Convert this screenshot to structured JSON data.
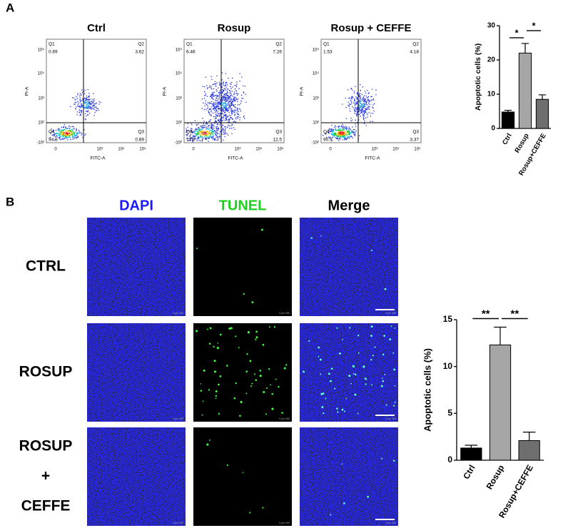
{
  "panel_labels": [
    "A",
    "B"
  ],
  "flow_axes": {
    "x_label": "FITC-A",
    "y_label": "PI-A",
    "xticks": [
      "0",
      "10³",
      "10⁴",
      "10⁵"
    ],
    "yticks": [
      "10⁵",
      "10⁴",
      "10³",
      "10²",
      "-10²"
    ]
  },
  "flow_plots": [
    {
      "title": "Ctrl",
      "quadrants": [
        {
          "name": "Q1",
          "value": 0.69
        },
        {
          "name": "Q2",
          "value": 3.62
        },
        {
          "name": "Q4",
          "value": 94.8
        },
        {
          "name": "Q3",
          "value": 0.89
        }
      ]
    },
    {
      "title": "Rosup",
      "quadrants": [
        {
          "name": "Q1",
          "value": 6.46
        },
        {
          "name": "Q2",
          "value": 7.26
        },
        {
          "name": "Q4",
          "value": 73.8
        },
        {
          "name": "Q3",
          "value": 12.5
        }
      ]
    },
    {
      "title": "Rosup + CEFFE",
      "quadrants": [
        {
          "name": "Q1",
          "value": 1.53
        },
        {
          "name": "Q2",
          "value": 4.18
        },
        {
          "name": "Q4",
          "value": 90.9
        },
        {
          "name": "Q3",
          "value": 3.37
        }
      ]
    }
  ],
  "microscopy": {
    "columns": [
      "DAPI",
      "TUNEL",
      "Merge"
    ],
    "rows": [
      [
        "CTRL"
      ],
      [
        "ROSUP"
      ],
      [
        "ROSUP",
        "+",
        "CEFFE"
      ]
    ],
    "scale_label": "0   µm   250"
  },
  "chart_data": [
    {
      "type": "bar",
      "ylabel": "Apoptotic cells (%)",
      "categories": [
        "Ctrl",
        "Rosup",
        "Rosup+CEFFE"
      ],
      "values": [
        4.8,
        22,
        8.5
      ],
      "errors": [
        0.5,
        2.8,
        1.3
      ],
      "colors": [
        "#000000",
        "#a6a6a6",
        "#6e6e6e"
      ],
      "ylim": [
        0,
        30
      ],
      "yticks": [
        0,
        10,
        20,
        30
      ],
      "significance": [
        "*",
        "*"
      ]
    },
    {
      "type": "bar",
      "ylabel": "Apoptotic cells (%)",
      "categories": [
        "Ctrl",
        "Rosup",
        "Rosup+CEFFE"
      ],
      "values": [
        1.3,
        12.3,
        2.1
      ],
      "errors": [
        0.3,
        1.9,
        0.9
      ],
      "colors": [
        "#000000",
        "#a6a6a6",
        "#6e6e6e"
      ],
      "ylim": [
        0,
        15
      ],
      "yticks": [
        0,
        5,
        10,
        15
      ],
      "significance": [
        "**",
        "**"
      ]
    }
  ]
}
